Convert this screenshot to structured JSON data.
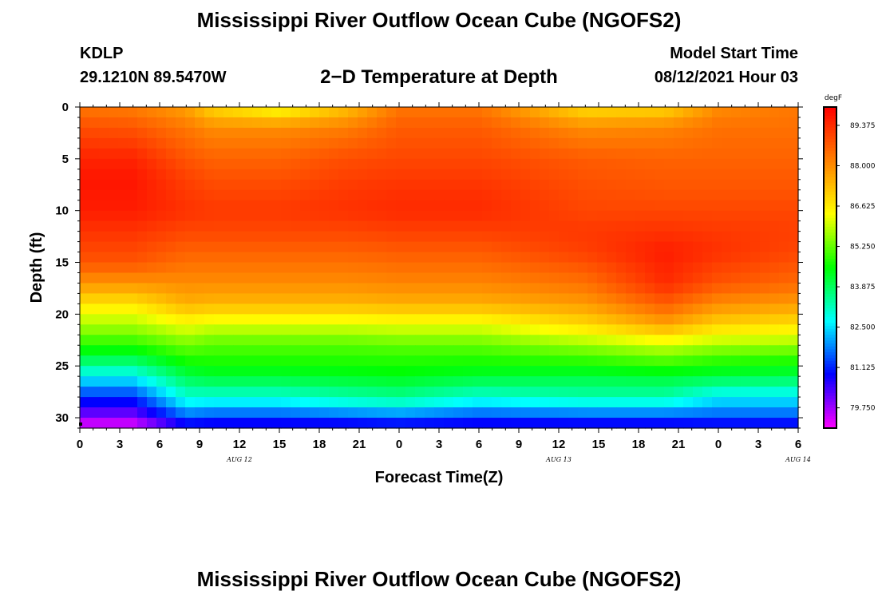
{
  "header": {
    "title": "Mississippi River Outflow Ocean Cube (NGOFS2)",
    "station": "KDLP",
    "coords": "29.1210N  89.5470W",
    "subtitle": "2−D Temperature at Depth",
    "model_label": "Model Start Time",
    "model_date": "08/12/2021 Hour 03"
  },
  "footer": {
    "title": "Mississippi River Outflow Ocean Cube (NGOFS2)"
  },
  "chart_data": {
    "type": "heatmap",
    "title": "2−D Temperature at Depth",
    "xlabel": "Forecast Time(Z)",
    "ylabel": "Depth (ft)",
    "x_tick_labels": [
      "0",
      "3",
      "6",
      "9",
      "12",
      "15",
      "18",
      "21",
      "0",
      "3",
      "6",
      "9",
      "12",
      "15",
      "18",
      "21",
      "0",
      "3",
      "6"
    ],
    "date_labels": [
      {
        "label": "AUG  12",
        "hour": 12
      },
      {
        "label": "AUG  13",
        "hour": 36
      },
      {
        "label": "AUG  14",
        "hour": 54
      }
    ],
    "x_range_hours": [
      0,
      54
    ],
    "y_ticks": [
      0,
      5,
      10,
      15,
      20,
      25,
      30
    ],
    "ylim": [
      0,
      31
    ],
    "y_inverted": true,
    "colorbar": {
      "unit": "degF",
      "labels": [
        "89.375",
        "88.000",
        "86.625",
        "85.250",
        "83.875",
        "82.500",
        "81.125",
        "79.750"
      ],
      "range": [
        79.06,
        90.0
      ],
      "colors": [
        "#ff00ff",
        "#8000ff",
        "#0000ff",
        "#0080ff",
        "#00ffff",
        "#00ff80",
        "#00ff00",
        "#80ff00",
        "#ffff00",
        "#ffc000",
        "#ff8000",
        "#ff4000",
        "#ff0000"
      ]
    },
    "depth_profiles": [
      {
        "hour": 0,
        "depth": [
          0,
          2,
          5,
          7,
          10,
          15,
          17,
          20,
          22,
          24,
          26,
          28,
          30,
          31
        ],
        "temp": [
          88.3,
          88.9,
          89.5,
          89.7,
          89.6,
          88.8,
          87.9,
          86.2,
          85.3,
          84.2,
          82.7,
          81.2,
          79.9,
          79.1
        ]
      },
      {
        "hour": 4,
        "depth": [
          0,
          2,
          5,
          7,
          10,
          15,
          17,
          20,
          22,
          24,
          26,
          28,
          30,
          31
        ],
        "temp": [
          88.2,
          88.8,
          89.5,
          89.7,
          89.6,
          88.8,
          87.9,
          86.2,
          85.3,
          84.2,
          82.7,
          81.2,
          79.9,
          79.1
        ]
      },
      {
        "hour": 8,
        "depth": [
          0,
          2,
          5,
          7,
          10,
          12,
          14,
          17,
          19,
          21,
          23,
          24,
          26,
          28,
          29,
          30,
          31
        ],
        "temp": [
          87.7,
          88.3,
          88.8,
          89.1,
          89.3,
          89.0,
          88.6,
          88.0,
          87.5,
          86.3,
          85.3,
          84.9,
          84.0,
          83.0,
          82.4,
          81.4,
          80.6
        ]
      },
      {
        "hour": 10,
        "depth": [
          0,
          2,
          5,
          8,
          10,
          12,
          14,
          17,
          19,
          21,
          23,
          24,
          26,
          28,
          29,
          30,
          31
        ],
        "temp": [
          86.9,
          88.0,
          88.6,
          89.0,
          89.2,
          89.0,
          88.6,
          88.0,
          87.4,
          86.1,
          85.1,
          84.9,
          84.2,
          83.0,
          82.2,
          81.3,
          80.5
        ]
      },
      {
        "hour": 15,
        "depth": [
          0,
          2,
          5,
          8,
          10,
          12,
          14,
          17,
          19,
          21,
          23,
          24,
          26,
          28,
          29,
          30,
          31
        ],
        "temp": [
          86.2,
          88.0,
          88.6,
          89.0,
          89.2,
          89.0,
          88.6,
          88.0,
          87.4,
          86.1,
          85.1,
          84.9,
          84.2,
          83.0,
          82.2,
          81.3,
          80.5
        ]
      },
      {
        "hour": 20,
        "depth": [
          0,
          2,
          5,
          8,
          10,
          12,
          14,
          17,
          19,
          21,
          23,
          24,
          26,
          28,
          29,
          30,
          31
        ],
        "temp": [
          87.2,
          88.2,
          88.9,
          89.2,
          89.3,
          89.0,
          88.6,
          88.0,
          87.4,
          86.1,
          85.1,
          84.9,
          84.3,
          83.3,
          82.5,
          81.4,
          80.5
        ]
      },
      {
        "hour": 24,
        "depth": [
          0,
          2,
          5,
          8,
          10,
          12,
          14,
          17,
          19,
          21,
          23,
          24,
          26,
          28,
          29,
          30,
          31
        ],
        "temp": [
          88.3,
          88.7,
          89.0,
          89.3,
          89.4,
          89.1,
          88.7,
          88.1,
          87.5,
          86.2,
          85.2,
          84.9,
          84.4,
          83.5,
          82.7,
          81.5,
          80.6
        ]
      },
      {
        "hour": 30,
        "depth": [
          0,
          2,
          5,
          8,
          10,
          12,
          14,
          17,
          19,
          21,
          23,
          24,
          26,
          28,
          29,
          30,
          31
        ],
        "temp": [
          88.3,
          88.7,
          89.0,
          89.3,
          89.4,
          89.1,
          88.7,
          88.1,
          87.5,
          86.2,
          85.2,
          84.9,
          84.2,
          83.0,
          82.2,
          81.3,
          80.5
        ]
      },
      {
        "hour": 38,
        "depth": [
          0,
          2,
          5,
          8,
          10,
          12,
          14,
          17,
          19,
          21,
          23,
          24,
          26,
          28,
          29,
          30,
          31
        ],
        "temp": [
          86.8,
          88.0,
          88.7,
          88.9,
          89.0,
          89.2,
          89.1,
          88.4,
          87.8,
          86.9,
          85.6,
          85.1,
          84.1,
          83.3,
          82.4,
          81.4,
          80.5
        ]
      },
      {
        "hour": 44,
        "depth": [
          0,
          2,
          5,
          8,
          10,
          12,
          14,
          17,
          19,
          21,
          23,
          24,
          26,
          28,
          29,
          30,
          31
        ],
        "temp": [
          86.9,
          88.1,
          88.6,
          88.8,
          89.0,
          89.3,
          89.6,
          89.4,
          88.7,
          87.7,
          86.0,
          85.4,
          84.2,
          83.3,
          82.4,
          81.4,
          80.5
        ]
      },
      {
        "hour": 48,
        "depth": [
          0,
          2,
          5,
          8,
          10,
          12,
          14,
          17,
          19,
          21,
          23,
          24,
          26,
          28,
          29,
          30,
          31
        ],
        "temp": [
          88.0,
          88.4,
          88.6,
          88.8,
          89.0,
          89.2,
          89.3,
          88.8,
          88.0,
          87.0,
          85.7,
          85.1,
          84.1,
          82.6,
          82.1,
          81.4,
          80.6
        ]
      },
      {
        "hour": 54,
        "depth": [
          0,
          2,
          5,
          8,
          10,
          12,
          14,
          17,
          19,
          21,
          23,
          24,
          26,
          28,
          29,
          30,
          31
        ],
        "temp": [
          88.3,
          88.4,
          88.6,
          88.8,
          89.0,
          89.1,
          89.0,
          88.5,
          87.8,
          86.8,
          85.6,
          85.0,
          84.0,
          82.6,
          82.1,
          81.4,
          80.6
        ]
      }
    ]
  }
}
